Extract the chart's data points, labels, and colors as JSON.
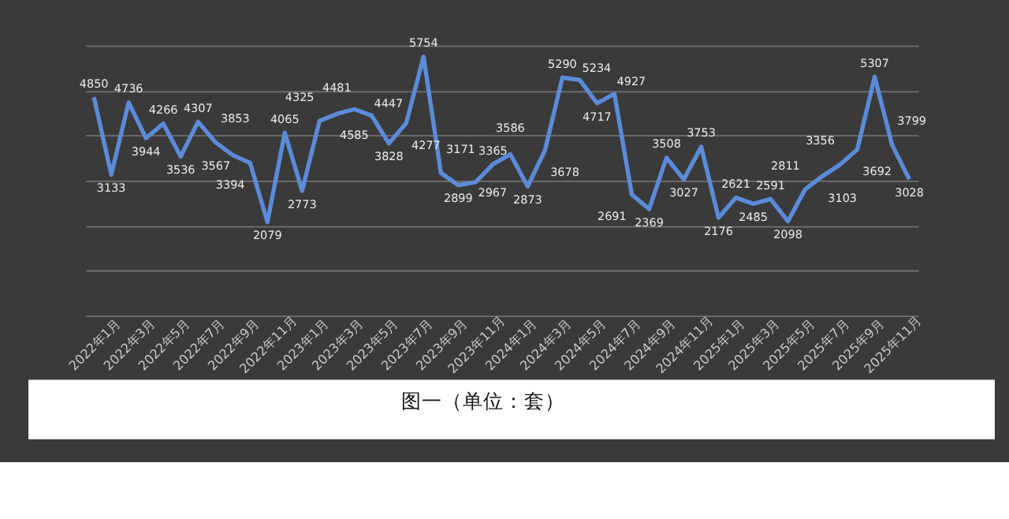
{
  "chart_data": {
    "type": "line",
    "categories": [
      "2022年1月",
      null,
      "2022年3月",
      null,
      "2022年5月",
      null,
      "2022年7月",
      null,
      "2022年9月",
      null,
      "2022年11月",
      null,
      "2023年1月",
      null,
      "2023年3月",
      null,
      "2023年5月",
      null,
      "2023年7月",
      null,
      "2023年9月",
      null,
      "2023年11月",
      null,
      "2024年1月",
      null,
      "2024年3月",
      null,
      "2024年5月",
      null,
      "2024年7月",
      null,
      "2024年9月",
      null,
      "2024年11月",
      null,
      "2025年1月",
      null,
      "2025年3月",
      null,
      "2025年5月",
      null,
      "2025年7月",
      null,
      "2025年9月",
      null,
      "2025年11月",
      null
    ],
    "series": [
      {
        "color": "#5b8bd9",
        "values": [
          4850,
          3133,
          4736,
          3944,
          4266,
          3536,
          4307,
          3853,
          3567,
          3394,
          2079,
          4065,
          2773,
          4325,
          4481,
          4585,
          4447,
          3828,
          4277,
          5754,
          3171,
          2899,
          2967,
          3365,
          3586,
          2873,
          3678,
          5290,
          5234,
          4717,
          4927,
          2691,
          2369,
          3508,
          3027,
          3753,
          2176,
          2621,
          2485,
          2591,
          2098,
          2811,
          3103,
          3356,
          3692,
          5307,
          3799,
          3028
        ]
      }
    ],
    "ylim": [
      0,
      6000
    ],
    "yticks": [
      {
        "value": 0,
        "label": null
      },
      {
        "value": 1000,
        "label": null
      },
      {
        "value": 2000,
        "label": null
      },
      {
        "value": 3000,
        "label": null
      },
      {
        "value": 4000,
        "label": null
      },
      {
        "value": 5000,
        "label": null
      },
      {
        "value": 6000,
        "label": null
      }
    ],
    "tick_labels": "x",
    "grid": "y",
    "data_labels": true,
    "legend": false,
    "marker": "none",
    "line_style": "solid",
    "annotations": [
      "图一（单位：套）"
    ]
  }
}
